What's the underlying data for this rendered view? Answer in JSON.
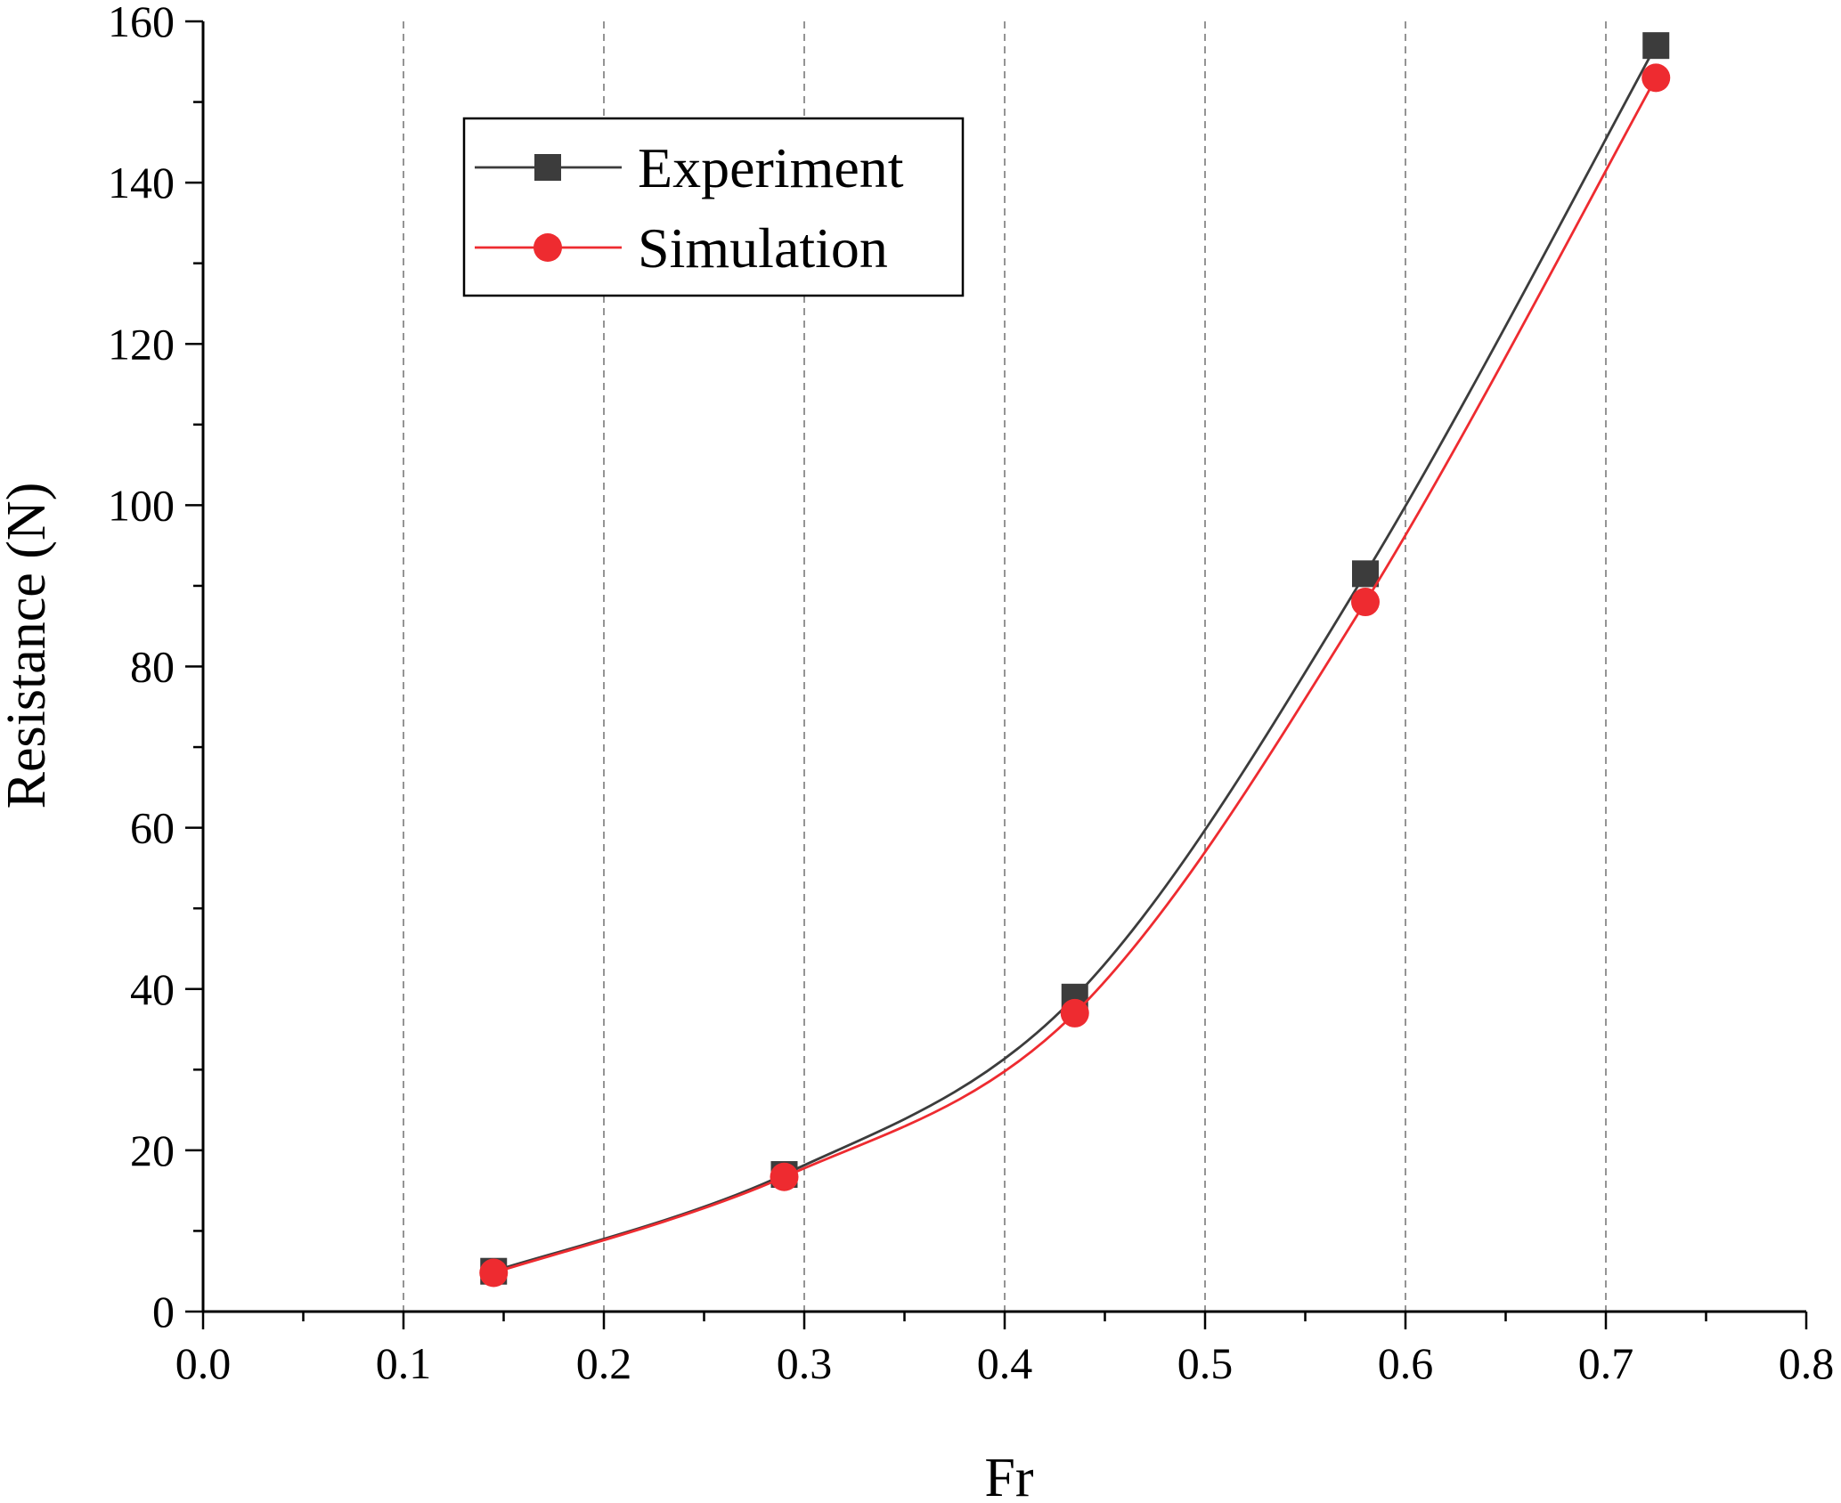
{
  "chart_data": {
    "type": "line",
    "title": "",
    "xlabel": "Fr",
    "ylabel": "Resistance (N)",
    "xlim": [
      0.0,
      0.8
    ],
    "ylim": [
      0,
      160
    ],
    "x_ticks": [
      0.0,
      0.1,
      0.2,
      0.3,
      0.4,
      0.5,
      0.6,
      0.7,
      0.8
    ],
    "x_tick_labels": [
      "0.0",
      "0.1",
      "0.2",
      "0.3",
      "0.4",
      "0.5",
      "0.6",
      "0.7",
      "0.8"
    ],
    "x_minor_step": 0.05,
    "y_ticks": [
      0,
      20,
      40,
      60,
      80,
      100,
      120,
      140,
      160
    ],
    "y_tick_labels": [
      "0",
      "20",
      "40",
      "60",
      "80",
      "100",
      "120",
      "140",
      "160"
    ],
    "y_minor_step": 10,
    "grid": "vertical dashed at major x ticks",
    "legend_position": "top-left",
    "series": [
      {
        "name": "Experiment",
        "marker": "square",
        "color": "#3c3c3c",
        "x": [
          0.145,
          0.29,
          0.435,
          0.58,
          0.725
        ],
        "y": [
          5.0,
          17.0,
          39.0,
          91.5,
          157.0
        ]
      },
      {
        "name": "Simulation",
        "marker": "circle",
        "color": "#ee2b30",
        "x": [
          0.145,
          0.29,
          0.435,
          0.58,
          0.725
        ],
        "y": [
          4.8,
          16.7,
          37.0,
          88.0,
          153.0
        ]
      }
    ]
  }
}
